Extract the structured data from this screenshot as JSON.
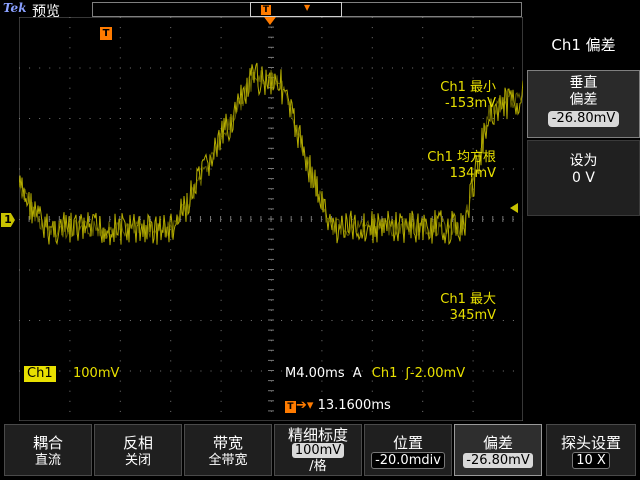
{
  "header": {
    "brand": "Tek",
    "mode": "预览"
  },
  "trigger": {
    "marker": "T",
    "position_text": "13.1600ms"
  },
  "channel": {
    "label": "1",
    "name": "Ch1",
    "scale": "100mV"
  },
  "timebase": {
    "text": "M4.00ms",
    "mode": "A",
    "source": "Ch1",
    "slope_glyph": "ʃ",
    "level": "-2.00mV"
  },
  "measurements": [
    {
      "label": "Ch1 最小",
      "value": "-153mV"
    },
    {
      "label": "Ch1 均方根",
      "value": "134mV"
    },
    {
      "label": "Ch1 最大",
      "value": "345mV"
    }
  ],
  "sidebar": {
    "title": "Ch1 偏差",
    "vertical": {
      "line1": "垂直",
      "line2": "偏差",
      "value": "-26.80mV"
    },
    "set_to": {
      "line1": "设为",
      "line2": "0 V"
    }
  },
  "bottom_menu": [
    {
      "line1": "耦合",
      "line2": "直流"
    },
    {
      "line1": "反相",
      "line2": "关闭"
    },
    {
      "line1": "带宽",
      "line2": "全带宽"
    },
    {
      "line1": "精细标度",
      "line2": "100mV",
      "line3": "/格"
    },
    {
      "line1": "位置",
      "line2": "-20.0mdiv"
    },
    {
      "line1": "偏差",
      "line2": "-26.80mV"
    },
    {
      "line1": "探头设置",
      "line2": "10 X"
    }
  ],
  "colors": {
    "trace": "#b5ad00",
    "accent": "#ff7b00",
    "text_yellow": "#e8e000"
  }
}
